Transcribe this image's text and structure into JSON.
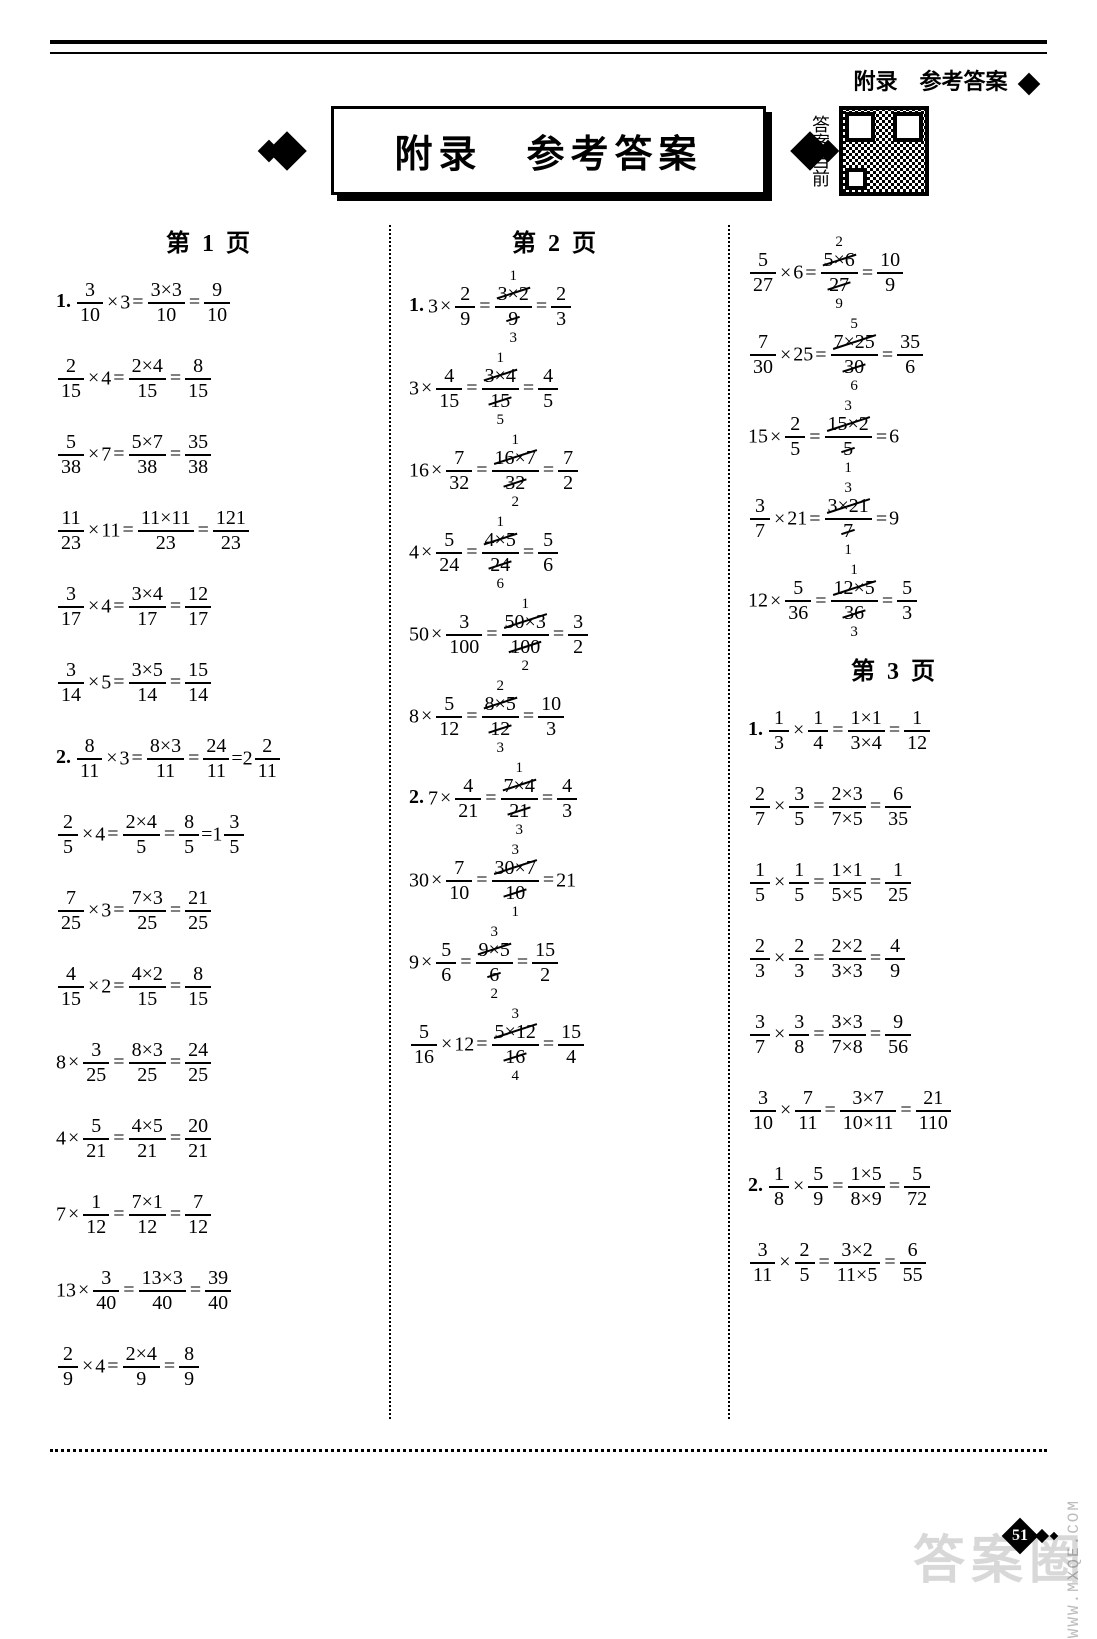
{
  "header": {
    "right_label": "附录　参考答案",
    "banner": "附录　参考答案",
    "qr_side_label": "答案当前"
  },
  "page_number": "51",
  "watermark": "答案圈",
  "watermark_url": "WWW.MXQE.COM",
  "columns": [
    {
      "heading": "第 1 页",
      "equations": [
        {
          "num": "1.",
          "lhs_n": "3",
          "lhs_d": "10",
          "times": "3",
          "mid_n": "3×3",
          "mid_d": "10",
          "res_n": "9",
          "res_d": "10"
        },
        {
          "lhs_n": "2",
          "lhs_d": "15",
          "times": "4",
          "mid_n": "2×4",
          "mid_d": "15",
          "res_n": "8",
          "res_d": "15"
        },
        {
          "lhs_n": "5",
          "lhs_d": "38",
          "times": "7",
          "mid_n": "5×7",
          "mid_d": "38",
          "res_n": "35",
          "res_d": "38"
        },
        {
          "lhs_n": "11",
          "lhs_d": "23",
          "times": "11",
          "mid_n": "11×11",
          "mid_d": "23",
          "res_n": "121",
          "res_d": "23"
        },
        {
          "lhs_n": "3",
          "lhs_d": "17",
          "times": "4",
          "mid_n": "3×4",
          "mid_d": "17",
          "res_n": "12",
          "res_d": "17"
        },
        {
          "lhs_n": "3",
          "lhs_d": "14",
          "times": "5",
          "mid_n": "3×5",
          "mid_d": "14",
          "res_n": "15",
          "res_d": "14"
        },
        {
          "num": "2.",
          "lhs_n": "8",
          "lhs_d": "11",
          "times": "3",
          "mid_n": "8×3",
          "mid_d": "11",
          "res_n": "24",
          "res_d": "11",
          "tail": "=2",
          "tail_n": "2",
          "tail_d": "11"
        },
        {
          "lhs_n": "2",
          "lhs_d": "5",
          "times": "4",
          "mid_n": "2×4",
          "mid_d": "5",
          "res_n": "8",
          "res_d": "5",
          "tail": "=1",
          "tail_n": "3",
          "tail_d": "5"
        },
        {
          "lhs_n": "7",
          "lhs_d": "25",
          "times": "3",
          "mid_n": "7×3",
          "mid_d": "25",
          "res_n": "21",
          "res_d": "25"
        },
        {
          "lhs_n": "4",
          "lhs_d": "15",
          "times": "2",
          "mid_n": "4×2",
          "mid_d": "15",
          "res_n": "8",
          "res_d": "15"
        },
        {
          "pre_int": "8",
          "lhs_n": "3",
          "lhs_d": "25",
          "mid_n": "8×3",
          "mid_d": "25",
          "res_n": "24",
          "res_d": "25"
        },
        {
          "pre_int": "4",
          "lhs_n": "5",
          "lhs_d": "21",
          "mid_n": "4×5",
          "mid_d": "21",
          "res_n": "20",
          "res_d": "21"
        },
        {
          "pre_int": "7",
          "lhs_n": "1",
          "lhs_d": "12",
          "mid_n": "7×1",
          "mid_d": "12",
          "res_n": "7",
          "res_d": "12"
        },
        {
          "pre_int": "13",
          "lhs_n": "3",
          "lhs_d": "40",
          "mid_n": "13×3",
          "mid_d": "40",
          "res_n": "39",
          "res_d": "40"
        },
        {
          "lhs_n": "2",
          "lhs_d": "9",
          "times": "4",
          "mid_n": "2×4",
          "mid_d": "9",
          "res_n": "8",
          "res_d": "9"
        }
      ]
    },
    {
      "heading": "第 2 页",
      "equations": [
        {
          "num": "1.",
          "pre_int": "3",
          "lhs_n": "2",
          "lhs_d": "9",
          "mid_n": "3×2",
          "mid_d": "9",
          "ann_top": "1",
          "ann_bot": "3",
          "cancel": true,
          "res_n": "2",
          "res_d": "3"
        },
        {
          "pre_int": "3",
          "lhs_n": "4",
          "lhs_d": "15",
          "mid_n": "3×4",
          "mid_d": "15",
          "ann_top": "1",
          "ann_bot": "5",
          "cancel": true,
          "res_n": "4",
          "res_d": "5"
        },
        {
          "pre_int": "16",
          "lhs_n": "7",
          "lhs_d": "32",
          "mid_n": "16×7",
          "mid_d": "32",
          "ann_top": "1",
          "ann_bot": "2",
          "cancel": true,
          "res_n": "7",
          "res_d": "2"
        },
        {
          "pre_int": "4",
          "lhs_n": "5",
          "lhs_d": "24",
          "mid_n": "4×5",
          "mid_d": "24",
          "ann_top": "1",
          "ann_bot": "6",
          "cancel": true,
          "res_n": "5",
          "res_d": "6"
        },
        {
          "pre_int": "50",
          "lhs_n": "3",
          "lhs_d": "100",
          "mid_n": "50×3",
          "mid_d": "100",
          "ann_top": "1",
          "ann_bot": "2",
          "cancel": true,
          "res_n": "3",
          "res_d": "2"
        },
        {
          "pre_int": "8",
          "lhs_n": "5",
          "lhs_d": "12",
          "mid_n": "8×5",
          "mid_d": "12",
          "ann_top": "2",
          "ann_bot": "3",
          "cancel": true,
          "res_n": "10",
          "res_d": "3"
        },
        {
          "num": "2.",
          "pre_int": "7",
          "lhs_n": "4",
          "lhs_d": "21",
          "mid_n": "7×4",
          "mid_d": "21",
          "ann_top": "1",
          "ann_bot": "3",
          "cancel": true,
          "res_n": "4",
          "res_d": "3"
        },
        {
          "pre_int": "30",
          "lhs_n": "7",
          "lhs_d": "10",
          "mid_n": "30×7",
          "mid_d": "10",
          "ann_top": "3",
          "ann_bot": "1",
          "cancel": true,
          "res_int": "21"
        },
        {
          "pre_int": "9",
          "lhs_n": "5",
          "lhs_d": "6",
          "mid_n": "9×5",
          "mid_d": "6",
          "ann_top": "3",
          "ann_bot": "2",
          "cancel": true,
          "res_n": "15",
          "res_d": "2"
        },
        {
          "lhs_n": "5",
          "lhs_d": "16",
          "times": "12",
          "mid_n": "5×12",
          "mid_d": "16",
          "ann_top": "3",
          "ann_bot": "4",
          "cancel": true,
          "res_n": "15",
          "res_d": "4"
        }
      ]
    },
    {
      "heading_top_equations": [
        {
          "lhs_n": "5",
          "lhs_d": "27",
          "times": "6",
          "mid_n": "5×6",
          "mid_d": "27",
          "ann_top": "2",
          "ann_bot": "9",
          "cancel": true,
          "res_n": "10",
          "res_d": "9"
        },
        {
          "lhs_n": "7",
          "lhs_d": "30",
          "times": "25",
          "mid_n": "7×25",
          "mid_d": "30",
          "ann_top": "5",
          "ann_bot": "6",
          "cancel": true,
          "res_n": "35",
          "res_d": "6"
        },
        {
          "pre_int": "15",
          "lhs_n": "2",
          "lhs_d": "5",
          "mid_n": "15×2",
          "mid_d": "5",
          "ann_top": "3",
          "ann_bot": "1",
          "cancel": true,
          "res_int": "6"
        },
        {
          "lhs_n": "3",
          "lhs_d": "7",
          "times": "21",
          "mid_n": "3×21",
          "mid_d": "7",
          "ann_top": "3",
          "ann_bot": "1",
          "cancel": true,
          "res_int": "9"
        },
        {
          "pre_int": "12",
          "lhs_n": "5",
          "lhs_d": "36",
          "mid_n": "12×5",
          "mid_d": "36",
          "ann_top": "1",
          "ann_bot": "3",
          "cancel": true,
          "res_n": "5",
          "res_d": "3"
        }
      ],
      "heading": "第 3 页",
      "equations": [
        {
          "num": "1.",
          "a_n": "1",
          "a_d": "3",
          "b_n": "1",
          "b_d": "4",
          "mid_n": "1×1",
          "mid_d": "3×4",
          "res_n": "1",
          "res_d": "12"
        },
        {
          "a_n": "2",
          "a_d": "7",
          "b_n": "3",
          "b_d": "5",
          "mid_n": "2×3",
          "mid_d": "7×5",
          "res_n": "6",
          "res_d": "35"
        },
        {
          "a_n": "1",
          "a_d": "5",
          "b_n": "1",
          "b_d": "5",
          "mid_n": "1×1",
          "mid_d": "5×5",
          "res_n": "1",
          "res_d": "25"
        },
        {
          "a_n": "2",
          "a_d": "3",
          "b_n": "2",
          "b_d": "3",
          "mid_n": "2×2",
          "mid_d": "3×3",
          "res_n": "4",
          "res_d": "9"
        },
        {
          "a_n": "3",
          "a_d": "7",
          "b_n": "3",
          "b_d": "8",
          "mid_n": "3×3",
          "mid_d": "7×8",
          "res_n": "9",
          "res_d": "56"
        },
        {
          "a_n": "3",
          "a_d": "10",
          "b_n": "7",
          "b_d": "11",
          "mid_n": "3×7",
          "mid_d": "10×11",
          "res_n": "21",
          "res_d": "110"
        },
        {
          "num": "2.",
          "a_n": "1",
          "a_d": "8",
          "b_n": "5",
          "b_d": "9",
          "mid_n": "1×5",
          "mid_d": "8×9",
          "res_n": "5",
          "res_d": "72"
        },
        {
          "a_n": "3",
          "a_d": "11",
          "b_n": "2",
          "b_d": "5",
          "mid_n": "3×2",
          "mid_d": "11×5",
          "res_n": "6",
          "res_d": "55"
        }
      ]
    }
  ]
}
